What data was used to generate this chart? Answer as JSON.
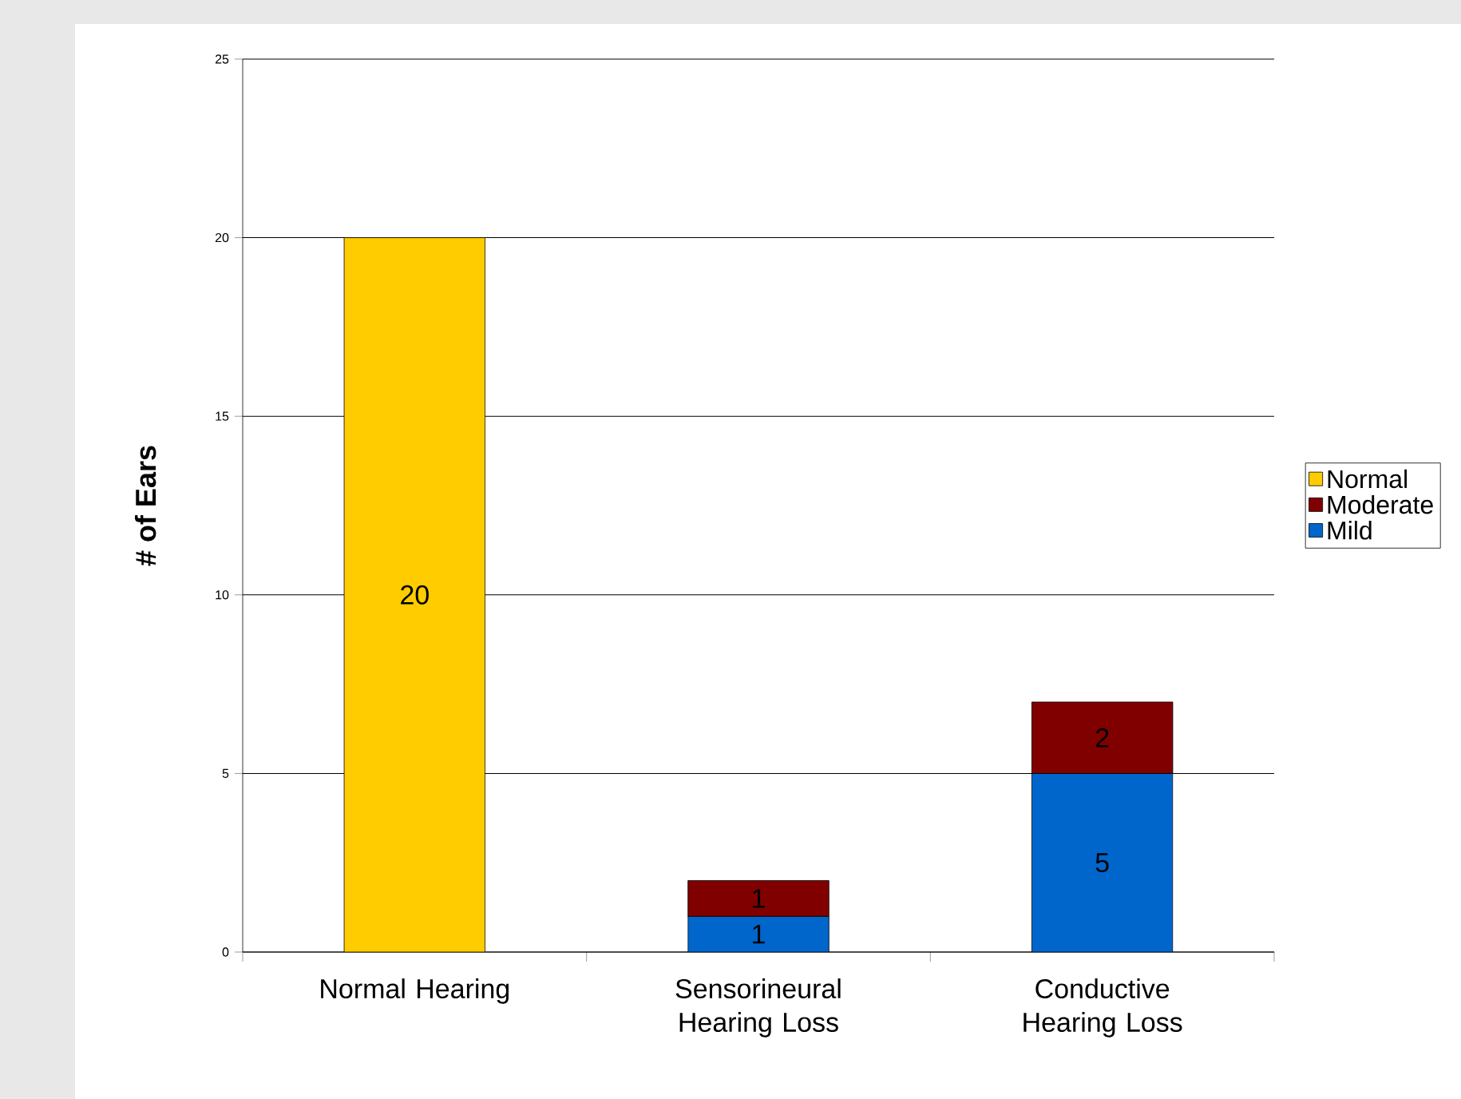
{
  "chart_data": {
    "type": "bar",
    "stacked": true,
    "ylabel": "# of Ears",
    "categories": [
      "Normal Hearing",
      "Sensorineural Hearing Loss",
      "Conductive Hearing Loss"
    ],
    "series": [
      {
        "name": "Mild",
        "color": "#0066cc",
        "values": [
          null,
          1,
          5
        ]
      },
      {
        "name": "Moderate",
        "color": "#800000",
        "values": [
          null,
          1,
          2
        ]
      },
      {
        "name": "Normal",
        "color": "#ffcc00",
        "values": [
          20,
          null,
          null
        ]
      }
    ],
    "ylim": [
      0,
      25
    ],
    "yticks": [
      0,
      5,
      10,
      15,
      20,
      25
    ],
    "grid": "y",
    "legend": "right",
    "data_labels": true
  }
}
